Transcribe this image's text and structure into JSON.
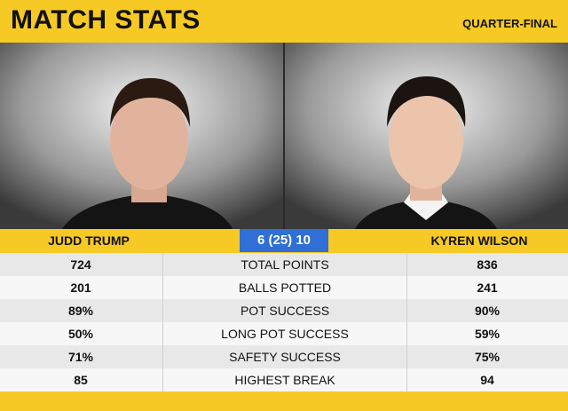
{
  "header": {
    "title": "MATCH STATS",
    "round": "QUARTER-FINAL"
  },
  "players": [
    "JUDD TRUMP",
    "KYREN WILSON"
  ],
  "score": "6 (25) 10",
  "table": {
    "rows": [
      [
        "724",
        "TOTAL POINTS",
        "836"
      ],
      [
        "201",
        "BALLS POTTED",
        "241"
      ],
      [
        "89%",
        "POT SUCCESS",
        "90%"
      ],
      [
        "50%",
        "LONG POT SUCCESS",
        "59%"
      ],
      [
        "71%",
        "SAFETY SUCCESS",
        "75%"
      ],
      [
        "85",
        "HIGHEST BREAK",
        "94"
      ]
    ]
  }
}
